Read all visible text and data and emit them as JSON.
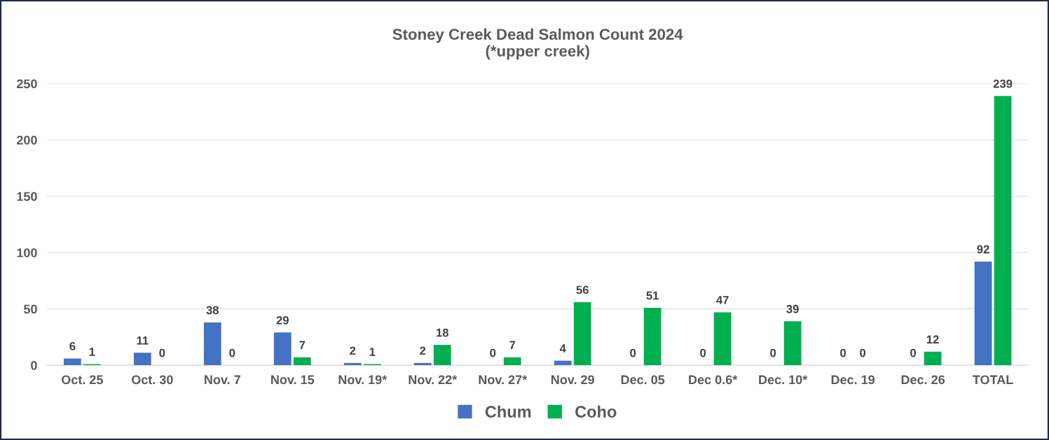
{
  "chart_data": {
    "type": "bar",
    "title": "Stoney Creek Dead Salmon Count 2024\n(*upper creek)",
    "categories": [
      "Oct. 25",
      "Oct. 30",
      "Nov. 7",
      "Nov. 15",
      "Nov. 19*",
      "Nov. 22*",
      "Nov. 27*",
      "Nov. 29",
      "Dec. 05",
      "Dec 0.6*",
      "Dec. 10*",
      "Dec. 19",
      "Dec. 26",
      "TOTAL"
    ],
    "series": [
      {
        "name": "Chum",
        "color": "#4472c4",
        "values": [
          6,
          11,
          38,
          29,
          2,
          2,
          0,
          4,
          0,
          0,
          0,
          0,
          0,
          92
        ]
      },
      {
        "name": "Coho",
        "color": "#00b050",
        "values": [
          1,
          0,
          0,
          7,
          1,
          18,
          7,
          56,
          51,
          47,
          39,
          0,
          12,
          239
        ]
      }
    ],
    "ylim": [
      0,
      250
    ],
    "yticks": [
      0,
      50,
      100,
      150,
      200,
      250
    ],
    "grid": "y",
    "legend": "bottom",
    "data_labels": true
  }
}
